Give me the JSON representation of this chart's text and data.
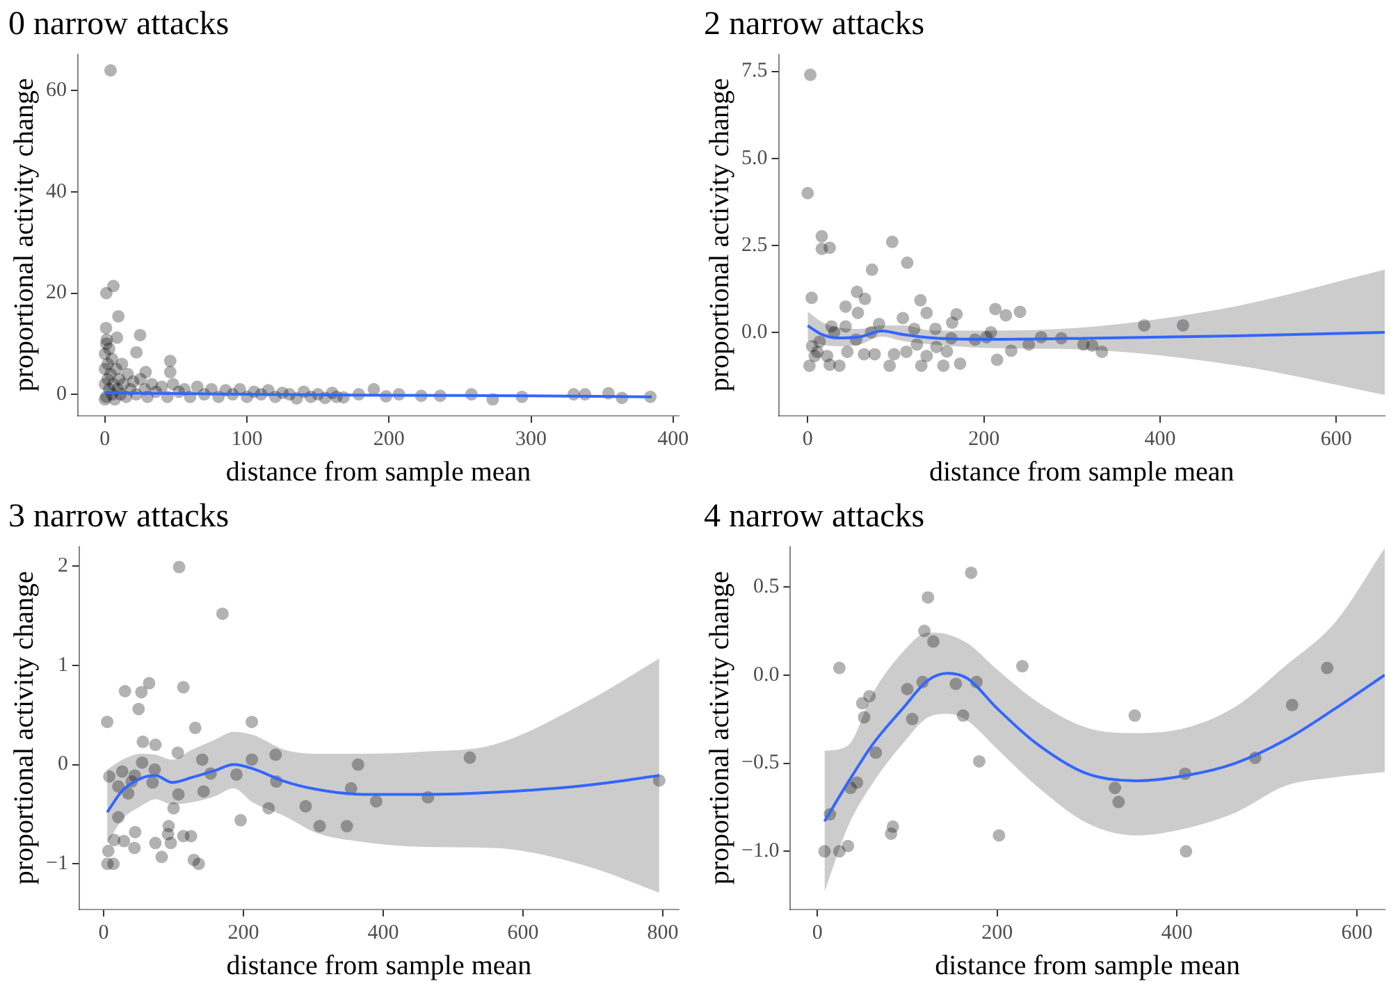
{
  "chart_data": [
    {
      "type": "scatter",
      "title": "0 narrow attacks",
      "xlabel": "distance from sample mean",
      "ylabel": "proportional activity change",
      "xlim": [
        -19,
        404
      ],
      "ylim": [
        -4.25,
        67.25
      ],
      "xticks": [
        0,
        100,
        200,
        300,
        400
      ],
      "yticks": [
        0,
        20,
        40,
        60
      ],
      "grid": false,
      "series": [
        {
          "type": "scatter",
          "marker": "circle",
          "color": "#000000",
          "x": [
            4,
            1,
            6,
            9.5,
            0.8,
            24.8,
            22.2,
            46,
            46,
            28.7,
            1.3,
            8.5,
            0,
            0,
            0,
            0,
            1,
            1,
            2,
            2,
            3,
            3,
            4,
            5,
            5,
            6,
            7,
            8,
            9,
            10,
            11,
            12,
            13,
            15,
            16,
            18,
            20,
            22,
            25,
            28,
            30,
            33,
            36,
            40,
            44,
            48,
            52,
            56,
            60,
            65,
            70,
            75,
            80,
            85,
            90,
            95,
            100,
            105,
            110,
            115,
            120,
            125,
            130,
            135,
            140,
            145,
            150,
            155,
            160,
            163,
            168,
            178.7,
            189.3,
            197.9,
            207,
            222.7,
            236,
            258,
            273,
            293.6,
            330,
            338,
            354.5,
            364,
            384
          ],
          "values": [
            64,
            20,
            21.4,
            15.4,
            13.1,
            11.7,
            8.3,
            6.6,
            4.4,
            4.4,
            10.8,
            11.2,
            -1,
            2,
            5,
            8,
            10,
            -0.5,
            3,
            6,
            1,
            9,
            4,
            0,
            7,
            2,
            -1,
            5,
            1,
            3,
            0,
            6,
            2,
            -0.5,
            4,
            1,
            2.5,
            0,
            3,
            1,
            -0.5,
            2,
            0.5,
            1.5,
            -0.5,
            2,
            0.5,
            1,
            -0.5,
            1.5,
            0,
            1,
            -0.5,
            0.8,
            0,
            1,
            -0.5,
            0.5,
            0,
            0.8,
            -0.5,
            0.3,
            0,
            -0.8,
            0.5,
            -0.5,
            0,
            -0.7,
            0.3,
            -0.5,
            -0.6,
            0,
            1,
            -0.4,
            0,
            -0.3,
            -0.3,
            0,
            -1,
            -0.5,
            0,
            0,
            0.2,
            -0.7,
            -0.5
          ]
        },
        {
          "type": "line",
          "color": "#3366ff",
          "x": [
            0,
            100,
            200,
            300,
            385
          ],
          "values": [
            0.3,
            0,
            -0.2,
            -0.3,
            -0.5
          ]
        }
      ]
    },
    {
      "type": "scatter",
      "title": "2 narrow attacks",
      "xlabel": "distance from sample mean",
      "ylabel": "proportional activity change",
      "xlim": [
        -33,
        655
      ],
      "ylim": [
        -2.4,
        8.0
      ],
      "xticks": [
        0,
        200,
        400,
        600
      ],
      "yticks": [
        {
          "value": 0,
          "label": "0.0"
        },
        {
          "value": 2.5,
          "label": "2.5"
        },
        {
          "value": 5,
          "label": "5.0"
        },
        {
          "value": 7.5,
          "label": "7.5"
        }
      ],
      "grid": false,
      "series": [
        {
          "type": "scatter",
          "marker": "circle",
          "color": "#000000",
          "x": [
            3,
            0,
            16,
            16,
            25,
            96,
            113,
            73,
            4.5,
            56,
            65,
            128,
            135,
            43,
            57,
            213,
            241,
            225,
            169,
            164,
            382,
            426,
            108,
            81,
            27,
            43,
            121,
            145,
            208,
            265,
            288,
            313,
            323,
            334,
            251,
            231,
            215,
            203,
            190,
            158,
            173,
            154,
            129,
            93,
            135,
            124,
            98,
            76,
            64,
            45,
            36,
            25,
            2,
            11,
            8,
            22,
            5,
            13.5,
            30,
            55,
            72,
            112,
            146,
            163
          ],
          "values": [
            7.4,
            4.0,
            2.76,
            2.4,
            2.43,
            2.6,
            2.0,
            1.8,
            0.99,
            1.16,
            0.96,
            0.92,
            0.56,
            0.74,
            0.56,
            0.67,
            0.59,
            0.49,
            0.52,
            0.28,
            0.2,
            0.2,
            0.41,
            0.24,
            0.17,
            0.17,
            0.1,
            0.1,
            0,
            -0.14,
            -0.17,
            -0.35,
            -0.38,
            -0.56,
            -0.35,
            -0.53,
            -0.79,
            -0.14,
            -0.21,
            -0.55,
            -0.9,
            -0.96,
            -0.96,
            -0.96,
            -0.68,
            -0.35,
            -0.63,
            -0.63,
            -0.63,
            -0.56,
            -0.96,
            -0.93,
            -0.96,
            -0.56,
            -0.68,
            -0.68,
            -0.4,
            -0.27,
            0,
            -0.21,
            0,
            -0.56,
            -0.42,
            -0.17
          ]
        },
        {
          "type": "line",
          "color": "#3366ff",
          "x": [
            0,
            16,
            33,
            59,
            84,
            108,
            142,
            204,
            317,
            486,
            655
          ],
          "values": [
            0.19,
            -0.06,
            -0.16,
            -0.13,
            0.04,
            -0.06,
            -0.16,
            -0.2,
            -0.17,
            -0.1,
            0
          ],
          "lower": [
            -0.25,
            -0.35,
            -0.4,
            -0.35,
            -0.12,
            -0.25,
            -0.35,
            -0.45,
            -0.5,
            -0.95,
            -1.8
          ],
          "upper": [
            0.6,
            0.3,
            0.15,
            0.1,
            0.2,
            0.2,
            0.05,
            0.05,
            0.15,
            0.75,
            1.8
          ]
        }
      ]
    },
    {
      "type": "scatter",
      "title": "3 narrow attacks",
      "xlabel": "distance from sample mean",
      "ylabel": "proportional activity change",
      "xlim": [
        -35,
        823
      ],
      "ylim": [
        -1.46,
        2.2
      ],
      "xticks": [
        0,
        200,
        400,
        600,
        800
      ],
      "yticks": [
        {
          "value": -1,
          "label": "−1"
        },
        0,
        1,
        2
      ],
      "grid": false,
      "series": [
        {
          "type": "scatter",
          "marker": "circle",
          "color": "#000000",
          "x": [
            108,
            170,
            5,
            30.5,
            54,
            65,
            114,
            50,
            131,
            212,
            56,
            74,
            106,
            246,
            524,
            364,
            141,
            212,
            55,
            8,
            26.5,
            44.5,
            73,
            70,
            40,
            21,
            35,
            107,
            143,
            153,
            190,
            247,
            354,
            100,
            236,
            289,
            390,
            464,
            795,
            21,
            196,
            309,
            348,
            93,
            15,
            29,
            45,
            92,
            114,
            125,
            74,
            96,
            44,
            6.6,
            83,
            129,
            136,
            5.3,
            14
          ],
          "values": [
            1.99,
            1.52,
            0.43,
            0.74,
            0.73,
            0.82,
            0.78,
            0.56,
            0.37,
            0.43,
            0.23,
            0.2,
            0.12,
            0.1,
            0.07,
            0,
            0.05,
            0.05,
            0.02,
            -0.12,
            -0.07,
            -0.11,
            -0.05,
            -0.18,
            -0.17,
            -0.22,
            -0.29,
            -0.3,
            -0.27,
            -0.09,
            -0.1,
            -0.17,
            -0.24,
            -0.44,
            -0.44,
            -0.42,
            -0.37,
            -0.33,
            -0.16,
            -0.53,
            -0.56,
            -0.62,
            -0.62,
            -0.62,
            -0.76,
            -0.77,
            -0.68,
            -0.7,
            -0.72,
            -0.72,
            -0.79,
            -0.79,
            -0.84,
            -0.87,
            -0.93,
            -0.96,
            -1,
            -1,
            -1
          ]
        },
        {
          "type": "line",
          "color": "#3366ff",
          "x": [
            5,
            27,
            53,
            74,
            98,
            126,
            159,
            186,
            213,
            259,
            305,
            372,
            458,
            558,
            690,
            795
          ],
          "values": [
            -0.48,
            -0.26,
            -0.14,
            -0.11,
            -0.18,
            -0.13,
            -0.06,
            0,
            -0.04,
            -0.17,
            -0.25,
            -0.3,
            -0.3,
            -0.28,
            -0.21,
            -0.11
          ],
          "lower": [
            -0.8,
            -0.55,
            -0.42,
            -0.35,
            -0.4,
            -0.38,
            -0.32,
            -0.24,
            -0.38,
            -0.52,
            -0.69,
            -0.78,
            -0.83,
            -0.84,
            -1.02,
            -1.29
          ],
          "upper": [
            -0.05,
            0.05,
            0.11,
            0.1,
            0.05,
            0.15,
            0.25,
            0.33,
            0.3,
            0.15,
            0.11,
            0.11,
            0.13,
            0.2,
            0.63,
            1.07
          ]
        }
      ]
    },
    {
      "type": "scatter",
      "title": "4 narrow attacks",
      "xlabel": "distance from sample mean",
      "ylabel": "proportional activity change",
      "xlim": [
        -30,
        631
      ],
      "ylim": [
        -1.33,
        0.73
      ],
      "xticks": [
        0,
        200,
        400,
        600
      ],
      "yticks": [
        {
          "value": -1,
          "label": "−1.0"
        },
        {
          "value": -0.5,
          "label": "−0.5"
        },
        {
          "value": 0,
          "label": "0.0"
        },
        {
          "value": 0.5,
          "label": "0.5"
        }
      ],
      "grid": false,
      "series": [
        {
          "type": "scatter",
          "marker": "circle",
          "color": "#000000",
          "x": [
            8,
            14,
            24.5,
            24.5,
            34,
            37,
            44,
            50,
            58,
            52,
            65,
            84,
            82,
            100,
            105.5,
            117,
            119,
            123,
            129,
            154,
            162,
            171,
            177,
            180,
            202,
            228,
            331,
            335,
            353,
            409,
            410,
            487,
            528,
            567
          ],
          "values": [
            -1,
            -0.79,
            0.04,
            -1,
            -0.97,
            -0.64,
            -0.61,
            -0.16,
            -0.12,
            -0.24,
            -0.44,
            -0.86,
            -0.9,
            -0.08,
            -0.25,
            -0.04,
            0.25,
            0.44,
            0.19,
            -0.05,
            -0.23,
            0.58,
            -0.04,
            -0.49,
            -0.91,
            0.05,
            -0.64,
            -0.72,
            -0.23,
            -0.56,
            -1,
            -0.47,
            -0.17,
            0.04
          ]
        },
        {
          "type": "line",
          "color": "#3366ff",
          "x": [
            8,
            34,
            62,
            95,
            123,
            145,
            167,
            200,
            244,
            300,
            355,
            410,
            465,
            520,
            576,
            631
          ],
          "values": [
            -0.83,
            -0.61,
            -0.39,
            -0.19,
            -0.03,
            0.01,
            -0.02,
            -0.19,
            -0.39,
            -0.56,
            -0.6,
            -0.57,
            -0.5,
            -0.37,
            -0.19,
            0
          ],
          "lower": [
            -1.23,
            -0.86,
            -0.61,
            -0.39,
            -0.24,
            -0.22,
            -0.26,
            -0.42,
            -0.63,
            -0.84,
            -0.91,
            -0.87,
            -0.78,
            -0.63,
            -0.58,
            -0.55
          ],
          "upper": [
            -0.43,
            -0.4,
            -0.1,
            0.13,
            0.24,
            0.23,
            0.18,
            0.03,
            -0.15,
            -0.3,
            -0.33,
            -0.3,
            -0.18,
            0.05,
            0.3,
            0.72
          ]
        }
      ]
    }
  ]
}
